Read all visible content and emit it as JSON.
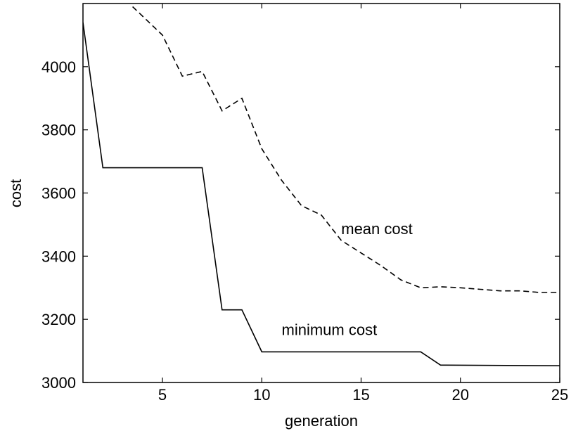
{
  "chart_data": {
    "type": "line",
    "title": "",
    "xlabel": "generation",
    "ylabel": "cost",
    "xlim": [
      1,
      25
    ],
    "ylim": [
      3000,
      4200
    ],
    "xticks": [
      5,
      10,
      15,
      20,
      25
    ],
    "yticks": [
      3000,
      3200,
      3400,
      3600,
      3800,
      4000
    ],
    "grid": false,
    "legend": "none",
    "series": [
      {
        "name": "mean cost",
        "style": "dashed",
        "color": "#000000",
        "x": [
          3.5,
          5,
          6,
          7,
          8,
          9,
          10,
          11,
          12,
          13,
          14,
          15,
          16,
          17,
          18,
          19,
          20,
          21,
          22,
          23,
          24,
          25
        ],
        "y": [
          4190,
          4100,
          3970,
          3985,
          3860,
          3900,
          3740,
          3640,
          3560,
          3530,
          3450,
          3410,
          3370,
          3325,
          3300,
          3303,
          3300,
          3295,
          3290,
          3290,
          3285,
          3285
        ]
      },
      {
        "name": "minimum cost",
        "style": "solid",
        "color": "#000000",
        "x": [
          1,
          2,
          7,
          8,
          9,
          10,
          18,
          19,
          25
        ],
        "y": [
          4140,
          3680,
          3680,
          3230,
          3230,
          3097,
          3097,
          3055,
          3053
        ]
      }
    ],
    "annotations": [
      {
        "text": "mean cost",
        "x": 14,
        "y": 3470
      },
      {
        "text": "minimum cost",
        "x": 11,
        "y": 3150
      }
    ]
  }
}
